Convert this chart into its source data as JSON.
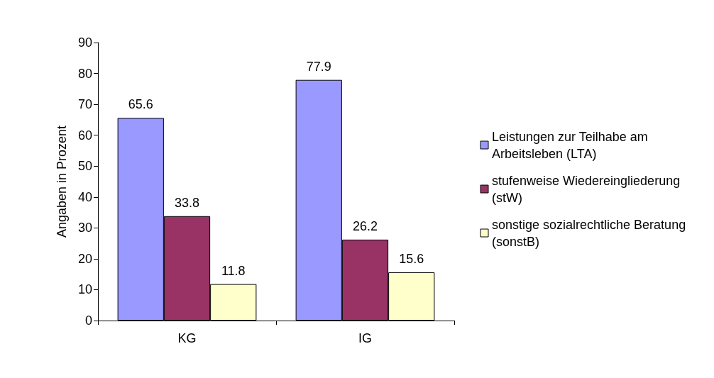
{
  "chart_data": {
    "type": "bar",
    "ylabel": "Angaben in Prozent",
    "categories": [
      "KG",
      "IG"
    ],
    "series": [
      {
        "name": "Leistungen zur Teilhabe am Arbeitsleben (LTA)",
        "color": "#9999ff",
        "values": [
          65.6,
          77.9
        ]
      },
      {
        "name": "stufenweise Wiedereingliederung (stW)",
        "color": "#993366",
        "values": [
          33.8,
          26.2
        ]
      },
      {
        "name": "sonstige sozialrechtliche Beratung (sonstB)",
        "color": "#ffffcc",
        "values": [
          11.8,
          15.6
        ]
      }
    ],
    "ylim": [
      0,
      90
    ],
    "yticks": [
      0,
      10,
      20,
      30,
      40,
      50,
      60,
      70,
      80,
      90
    ],
    "data_labels": true,
    "legend": "right",
    "grid": false
  }
}
